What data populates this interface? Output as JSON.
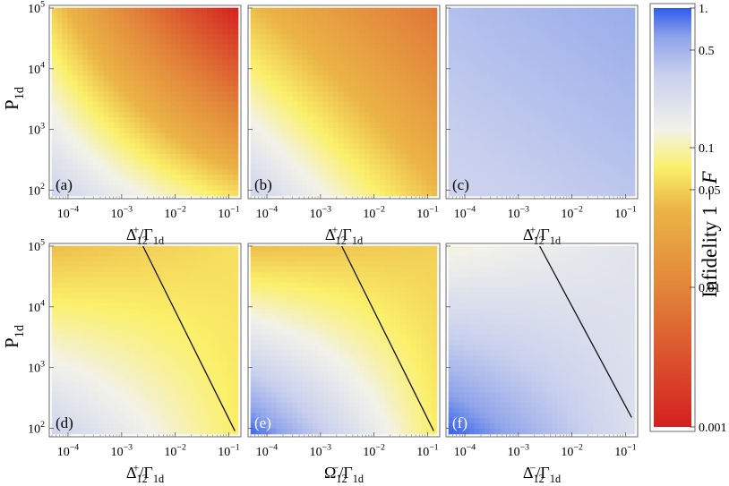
{
  "chart_data": [
    {
      "type": "heatmap",
      "panel_label": "(a)",
      "xlabel": "Δ_12^+/Γ_1d",
      "ylabel": "P_1d",
      "x_ticks": [
        "10^-4",
        "10^-3",
        "10^-2",
        "10^-1"
      ],
      "y_ticks": [
        "10^2",
        "10^3",
        "10^4",
        "10^5"
      ],
      "xlim": [
        5e-05,
        0.15
      ],
      "ylim": [
        80,
        100000
      ],
      "xscale": "log",
      "yscale": "log",
      "infidelity_corners": {
        "bottom_left": 0.3,
        "bottom_right": 0.06,
        "top_left": 0.05,
        "top_right": 0.001
      },
      "boundary_line": null
    },
    {
      "type": "heatmap",
      "panel_label": "(b)",
      "xlabel": "Δ_12^+/Γ_1d",
      "ylabel": "",
      "x_ticks": [
        "10^-4",
        "10^-3",
        "10^-2",
        "10^-1"
      ],
      "y_ticks": [],
      "xlim": [
        5e-05,
        0.15
      ],
      "ylim": [
        80,
        100000
      ],
      "xscale": "log",
      "yscale": "log",
      "infidelity_corners": {
        "bottom_left": 0.3,
        "bottom_right": 0.04,
        "top_left": 0.04,
        "top_right": 0.007
      },
      "boundary_line": null
    },
    {
      "type": "heatmap",
      "panel_label": "(c)",
      "xlabel": "Δ_12^+/Γ_1d",
      "ylabel": "",
      "x_ticks": [
        "10^-4",
        "10^-3",
        "10^-2",
        "10^-1"
      ],
      "y_ticks": [],
      "xlim": [
        5e-05,
        0.15
      ],
      "ylim": [
        80,
        100000
      ],
      "xscale": "log",
      "yscale": "log",
      "infidelity_corners": {
        "bottom_left": 0.3,
        "bottom_right": 0.38,
        "top_left": 0.42,
        "top_right": 0.55
      },
      "boundary_line": null
    },
    {
      "type": "heatmap",
      "panel_label": "(d)",
      "xlabel": "Δ_12^+/Γ_1d",
      "ylabel": "P_1d",
      "x_ticks": [
        "10^-4",
        "10^-3",
        "10^-2",
        "10^-1"
      ],
      "y_ticks": [
        "10^2",
        "10^3",
        "10^4",
        "10^5"
      ],
      "xlim": [
        5e-05,
        0.15
      ],
      "ylim": [
        80,
        100000
      ],
      "xscale": "log",
      "yscale": "log",
      "infidelity_corners": {
        "bottom_left": 0.3,
        "bottom_right": 0.07,
        "top_left": 0.04,
        "top_right": 0.06
      },
      "boundary_line": [
        [
          0.0025,
          100000
        ],
        [
          0.13,
          90
        ]
      ]
    },
    {
      "type": "heatmap",
      "panel_label": "(e)",
      "xlabel": "Ω_12^-/Γ_1d",
      "ylabel": "",
      "x_ticks": [
        "10^-4",
        "10^-3",
        "10^-2",
        "10^-1"
      ],
      "y_ticks": [],
      "xlim": [
        5e-05,
        0.15
      ],
      "ylim": [
        80,
        100000
      ],
      "xscale": "log",
      "yscale": "log",
      "infidelity_corners": {
        "bottom_left": 0.95,
        "bottom_right": 0.07,
        "top_left": 0.04,
        "top_right": 0.05
      },
      "boundary_line": [
        [
          0.0025,
          100000
        ],
        [
          0.13,
          90
        ]
      ]
    },
    {
      "type": "heatmap",
      "panel_label": "(f)",
      "xlabel": "Δ_12^-/Γ_1d",
      "ylabel": "",
      "x_ticks": [
        "10^-4",
        "10^-3",
        "10^-2",
        "10^-1"
      ],
      "y_ticks": [],
      "xlim": [
        5e-05,
        0.15
      ],
      "ylim": [
        80,
        100000
      ],
      "xscale": "log",
      "yscale": "log",
      "infidelity_corners": {
        "bottom_left": 0.98,
        "bottom_right": 0.22,
        "top_left": 0.12,
        "top_right": 0.2
      },
      "boundary_line": [
        [
          0.0025,
          100000
        ],
        [
          0.13,
          150
        ]
      ]
    }
  ],
  "colorbar": {
    "label": "Infidelity 1 − F",
    "scale": "log",
    "range": [
      0.001,
      1
    ],
    "ticks": [
      "1.",
      "0.5",
      "0.1",
      "0.05",
      "0.01",
      "0.001"
    ],
    "tick_values": [
      1,
      0.5,
      0.1,
      0.05,
      0.01,
      0.001
    ],
    "colors": [
      "#d42020",
      "#e2843a",
      "#ebb446",
      "#fbf06a",
      "#f2f2ea",
      "#c9d0ee",
      "#8fa4ea",
      "#2f5cec"
    ]
  }
}
